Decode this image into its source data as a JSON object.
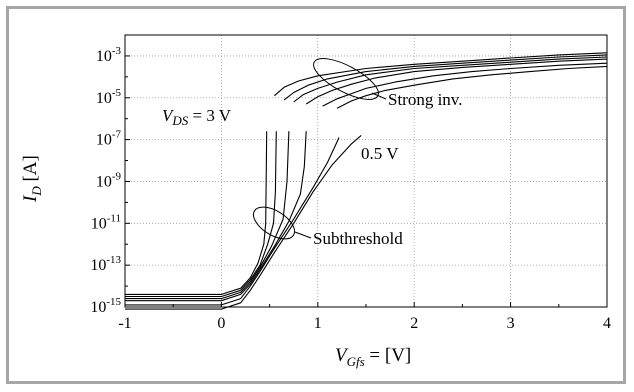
{
  "chart_data": {
    "type": "line",
    "title": "",
    "xlabel": {
      "symbol": "V",
      "subscript": "Gfs",
      "suffix": " = [V]"
    },
    "ylabel": {
      "symbol": "I",
      "subscript": "D",
      "suffix": " [A]"
    },
    "xlim": [
      -1,
      4
    ],
    "ylim_log10": [
      -15,
      -2
    ],
    "y_scale": "log",
    "grid": true,
    "x_ticks": [
      "-1",
      "0",
      "1",
      "2",
      "3",
      "4"
    ],
    "y_ticks": [
      {
        "base": "10",
        "exp": "-3",
        "value": -3
      },
      {
        "base": "10",
        "exp": "-5",
        "value": -5
      },
      {
        "base": "10",
        "exp": "-7",
        "value": -7
      },
      {
        "base": "10",
        "exp": "-9",
        "value": -9
      },
      {
        "base": "10",
        "exp": "-11",
        "value": -11
      },
      {
        "base": "10",
        "exp": "-13",
        "value": -13
      },
      {
        "base": "10",
        "exp": "-15",
        "value": -15
      }
    ],
    "annotations": {
      "vds_top": {
        "symbol": "V",
        "subscript": "DS",
        "suffix": " = 3 V"
      },
      "vds_bottom": "0.5 V",
      "strong": "Strong inv.",
      "subthreshold": "Subthreshold"
    },
    "series": [
      {
        "x": [
          -1,
          0,
          0.2,
          0.3,
          0.38,
          0.44,
          0.46,
          0.47
        ],
        "y": [
          -14.4,
          -14.4,
          -14.1,
          -13.6,
          -12.9,
          -12.0,
          -11.0,
          -6.6
        ]
      },
      {
        "x": [
          -1,
          0,
          0.2,
          0.3,
          0.4,
          0.48,
          0.54,
          0.56,
          0.57
        ],
        "y": [
          -14.5,
          -14.5,
          -14.2,
          -13.7,
          -13.0,
          -12.0,
          -11.0,
          -9.5,
          -6.6
        ]
      },
      {
        "x": [
          -1,
          0,
          0.2,
          0.3,
          0.4,
          0.52,
          0.64,
          0.68,
          0.7
        ],
        "y": [
          -14.6,
          -14.6,
          -14.3,
          -13.8,
          -13.1,
          -12.1,
          -10.8,
          -9.0,
          -6.6
        ]
      },
      {
        "x": [
          -1,
          0,
          0.2,
          0.3,
          0.4,
          0.55,
          0.7,
          0.82,
          0.86,
          0.88
        ],
        "y": [
          -14.7,
          -14.7,
          -14.4,
          -13.9,
          -13.2,
          -12.1,
          -10.9,
          -9.6,
          -8.3,
          -6.6
        ]
      },
      {
        "x": [
          -1,
          0,
          0.2,
          0.3,
          0.4,
          0.55,
          0.75,
          0.95,
          1.1,
          1.18,
          1.22
        ],
        "y": [
          -14.9,
          -14.9,
          -14.6,
          -14.0,
          -13.3,
          -12.2,
          -10.8,
          -9.3,
          -8.1,
          -7.3,
          -6.9
        ]
      },
      {
        "x": [
          -1,
          0,
          0.2,
          0.3,
          0.4,
          0.55,
          0.75,
          0.95,
          1.15,
          1.35,
          1.45
        ],
        "y": [
          -15.1,
          -15.1,
          -14.8,
          -14.2,
          -13.5,
          -12.4,
          -11.0,
          -9.5,
          -8.2,
          -7.2,
          -6.8
        ]
      },
      {
        "x": [
          0.55,
          0.65,
          0.8,
          1.0,
          1.5,
          2.0,
          2.5,
          3.0,
          3.5,
          4.0
        ],
        "y": [
          -4.9,
          -4.5,
          -4.2,
          -3.95,
          -3.6,
          -3.4,
          -3.25,
          -3.1,
          -2.95,
          -2.85
        ]
      },
      {
        "x": [
          0.65,
          0.75,
          0.9,
          1.1,
          1.5,
          2.0,
          2.5,
          3.0,
          3.5,
          4.0
        ],
        "y": [
          -5.1,
          -4.75,
          -4.4,
          -4.1,
          -3.75,
          -3.5,
          -3.35,
          -3.2,
          -3.05,
          -2.95
        ]
      },
      {
        "x": [
          0.75,
          0.85,
          1.0,
          1.2,
          1.5,
          2.0,
          2.5,
          3.0,
          3.5,
          4.0
        ],
        "y": [
          -5.2,
          -4.85,
          -4.55,
          -4.25,
          -3.9,
          -3.6,
          -3.45,
          -3.3,
          -3.15,
          -3.05
        ]
      },
      {
        "x": [
          0.88,
          1.0,
          1.15,
          1.35,
          1.6,
          2.0,
          2.5,
          3.0,
          3.5,
          4.0
        ],
        "y": [
          -5.3,
          -4.95,
          -4.65,
          -4.35,
          -4.05,
          -3.75,
          -3.55,
          -3.4,
          -3.25,
          -3.15
        ]
      },
      {
        "x": [
          1.05,
          1.2,
          1.35,
          1.5,
          1.8,
          2.2,
          2.6,
          3.0,
          3.5,
          4.0
        ],
        "y": [
          -5.4,
          -5.05,
          -4.8,
          -4.55,
          -4.25,
          -3.95,
          -3.75,
          -3.6,
          -3.45,
          -3.35
        ]
      },
      {
        "x": [
          1.2,
          1.35,
          1.5,
          1.7,
          2.0,
          2.4,
          2.8,
          3.2,
          3.6,
          4.0
        ],
        "y": [
          -5.5,
          -5.15,
          -4.9,
          -4.65,
          -4.4,
          -4.1,
          -3.9,
          -3.75,
          -3.6,
          -3.5
        ]
      }
    ]
  }
}
